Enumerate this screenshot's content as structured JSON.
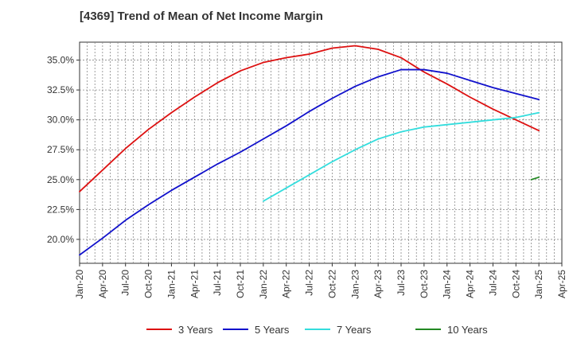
{
  "chart_data": {
    "type": "line",
    "title": "[4369]  Trend of Mean of Net Income Margin",
    "xlabel": "",
    "ylabel": "",
    "x_ticks": [
      "Jan-20",
      "Apr-20",
      "Jul-20",
      "Oct-20",
      "Jan-21",
      "Apr-21",
      "Jul-21",
      "Oct-21",
      "Jan-22",
      "Apr-22",
      "Jul-22",
      "Oct-22",
      "Jan-23",
      "Apr-23",
      "Jul-23",
      "Oct-23",
      "Jan-24",
      "Apr-24",
      "Jul-24",
      "Oct-24",
      "Jan-25",
      "Apr-25"
    ],
    "y_ticks": [
      "20.0%",
      "22.5%",
      "25.0%",
      "27.5%",
      "30.0%",
      "32.5%",
      "35.0%"
    ],
    "y_tick_values": [
      20.0,
      22.5,
      25.0,
      27.5,
      30.0,
      32.5,
      35.0
    ],
    "xlim": [
      "Jan-20",
      "Apr-25"
    ],
    "ylim": [
      18.0,
      36.5
    ],
    "grid": true,
    "legend_position": "bottom",
    "series": [
      {
        "name": "3 Years",
        "color": "#dd1111",
        "points": [
          [
            "Jan-20",
            24.0
          ],
          [
            "Apr-20",
            25.8
          ],
          [
            "Jul-20",
            27.6
          ],
          [
            "Oct-20",
            29.2
          ],
          [
            "Jan-21",
            30.6
          ],
          [
            "Apr-21",
            31.9
          ],
          [
            "Jul-21",
            33.1
          ],
          [
            "Oct-21",
            34.1
          ],
          [
            "Jan-22",
            34.8
          ],
          [
            "Apr-22",
            35.2
          ],
          [
            "Jul-22",
            35.5
          ],
          [
            "Oct-22",
            36.0
          ],
          [
            "Jan-23",
            36.2
          ],
          [
            "Apr-23",
            35.9
          ],
          [
            "Jul-23",
            35.2
          ],
          [
            "Oct-23",
            34.0
          ],
          [
            "Jan-24",
            33.0
          ],
          [
            "Apr-24",
            31.9
          ],
          [
            "Jul-24",
            30.9
          ],
          [
            "Oct-24",
            30.0
          ],
          [
            "Jan-25",
            29.1
          ]
        ]
      },
      {
        "name": "5 Years",
        "color": "#1111cc",
        "points": [
          [
            "Jan-20",
            18.7
          ],
          [
            "Apr-20",
            20.1
          ],
          [
            "Jul-20",
            21.6
          ],
          [
            "Oct-20",
            22.9
          ],
          [
            "Jan-21",
            24.1
          ],
          [
            "Apr-21",
            25.2
          ],
          [
            "Jul-21",
            26.3
          ],
          [
            "Oct-21",
            27.3
          ],
          [
            "Jan-22",
            28.4
          ],
          [
            "Apr-22",
            29.5
          ],
          [
            "Jul-22",
            30.7
          ],
          [
            "Oct-22",
            31.8
          ],
          [
            "Jan-23",
            32.8
          ],
          [
            "Apr-23",
            33.6
          ],
          [
            "Jul-23",
            34.2
          ],
          [
            "Oct-23",
            34.2
          ],
          [
            "Jan-24",
            33.9
          ],
          [
            "Apr-24",
            33.3
          ],
          [
            "Jul-24",
            32.7
          ],
          [
            "Oct-24",
            32.2
          ],
          [
            "Jan-25",
            31.7
          ]
        ]
      },
      {
        "name": "7 Years",
        "color": "#33dddd",
        "points": [
          [
            "Jan-22",
            23.2
          ],
          [
            "Apr-22",
            24.3
          ],
          [
            "Jul-22",
            25.4
          ],
          [
            "Oct-22",
            26.5
          ],
          [
            "Jan-23",
            27.5
          ],
          [
            "Apr-23",
            28.4
          ],
          [
            "Jul-23",
            29.0
          ],
          [
            "Oct-23",
            29.4
          ],
          [
            "Jan-24",
            29.6
          ],
          [
            "Apr-24",
            29.8
          ],
          [
            "Jul-24",
            30.0
          ],
          [
            "Oct-24",
            30.2
          ],
          [
            "Jan-25",
            30.6
          ]
        ]
      },
      {
        "name": "10 Years",
        "color": "#228822",
        "points": [
          [
            "Dec-24",
            25.0
          ],
          [
            "Jan-25",
            25.2
          ]
        ]
      }
    ]
  }
}
